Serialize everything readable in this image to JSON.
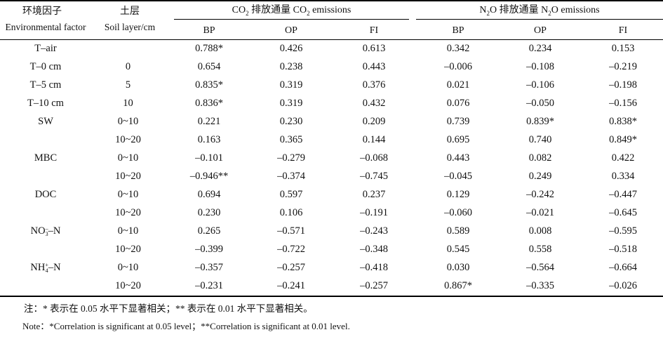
{
  "header": {
    "factor_cn": "环境因子",
    "factor_en": "Environmental factor",
    "layer_cn": "土层",
    "layer_en": "Soil layer/cm",
    "co2_title_pre": "CO",
    "co2_title_mid": " 排放通量 CO",
    "co2_title_post": " emissions",
    "co2_sub": "2",
    "n2o_title_pre": "N",
    "n2o_title_mid": "O 排放通量 N",
    "n2o_title_post": "O emissions",
    "n2o_sub": "2",
    "co2_cols": [
      "BP",
      "OP",
      "FI"
    ],
    "n2o_cols": [
      "BP",
      "OP",
      "FI"
    ]
  },
  "rows": [
    {
      "factor": "T–air",
      "layer": "",
      "v": [
        "0.788*",
        "0.426",
        "0.613",
        "0.342",
        "0.234",
        "0.153"
      ]
    },
    {
      "factor": "T–0 cm",
      "layer": "0",
      "v": [
        "0.654",
        "0.238",
        "0.443",
        "–0.006",
        "–0.108",
        "–0.219"
      ]
    },
    {
      "factor": "T–5 cm",
      "layer": "5",
      "v": [
        "0.835*",
        "0.319",
        "0.376",
        "0.021",
        "–0.106",
        "–0.198"
      ]
    },
    {
      "factor": "T–10 cm",
      "layer": "10",
      "v": [
        "0.836*",
        "0.319",
        "0.432",
        "0.076",
        "–0.050",
        "–0.156"
      ]
    },
    {
      "factor": "SW",
      "layer": "0~10",
      "v": [
        "0.221",
        "0.230",
        "0.209",
        "0.739",
        "0.839*",
        "0.838*"
      ]
    },
    {
      "factor": "",
      "layer": "10~20",
      "v": [
        "0.163",
        "0.365",
        "0.144",
        "0.695",
        "0.740",
        "0.849*"
      ]
    },
    {
      "factor": "MBC",
      "layer": "0~10",
      "v": [
        "–0.101",
        "–0.279",
        "–0.068",
        "0.443",
        "0.082",
        "0.422"
      ]
    },
    {
      "factor": "",
      "layer": "10~20",
      "v": [
        "–0.946**",
        "–0.374",
        "–0.745",
        "–0.045",
        "0.249",
        "0.334"
      ]
    },
    {
      "factor": "DOC",
      "layer": "0~10",
      "v": [
        "0.694",
        "0.597",
        "0.237",
        "0.129",
        "–0.242",
        "–0.447"
      ]
    },
    {
      "factor": "",
      "layer": "10~20",
      "v": [
        "0.230",
        "0.106",
        "–0.191",
        "–0.060",
        "–0.021",
        "–0.645"
      ]
    },
    {
      "factor": "NO3–N",
      "layer": "0~10",
      "v": [
        "0.265",
        "–0.571",
        "–0.243",
        "0.589",
        "0.008",
        "–0.595"
      ]
    },
    {
      "factor": "",
      "layer": "10~20",
      "v": [
        "–0.399",
        "–0.722",
        "–0.348",
        "0.545",
        "0.558",
        "–0.518"
      ]
    },
    {
      "factor": "NH4+–N",
      "layer": "0~10",
      "v": [
        "–0.357",
        "–0.257",
        "–0.418",
        "0.030",
        "–0.564",
        "–0.664"
      ]
    },
    {
      "factor": "",
      "layer": "10~20",
      "v": [
        "–0.231",
        "–0.241",
        "–0.257",
        "0.867*",
        "–0.335",
        "–0.026"
      ]
    }
  ],
  "factor_parts": {
    "no3_base": "NO",
    "no3_sub": "3",
    "no3_sup": "–",
    "no3_tail": "–N",
    "nh4_base": "NH",
    "nh4_sub": "4",
    "nh4_sup": "+",
    "nh4_tail": "–N"
  },
  "notes": {
    "cn": "注：* 表示在 0.05 水平下显著相关；** 表示在 0.01 水平下显著相关。",
    "en": "Note：*Correlation is significant at 0.05 level；**Correlation is significant at 0.01 level."
  }
}
